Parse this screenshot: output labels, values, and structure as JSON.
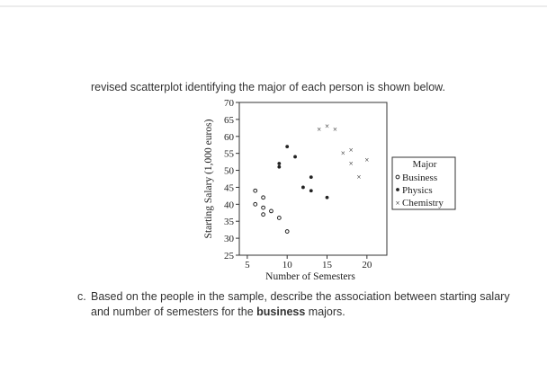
{
  "intro": {
    "text": "revised scatterplot identifying the major of each person is shown below."
  },
  "question": {
    "label": "c.",
    "text_before": "Based on the people in the sample, describe the association between starting salary and number of semesters for the ",
    "bold_word": "business",
    "text_after": " majors."
  },
  "chart_data": {
    "type": "scatter",
    "title": "",
    "xlabel": "Number of Semesters",
    "ylabel": "Starting Salary (1,000 euros)",
    "xlim": [
      4,
      22.5
    ],
    "ylim": [
      25,
      70
    ],
    "xticks": [
      5,
      10,
      15,
      20
    ],
    "yticks": [
      25,
      30,
      35,
      40,
      45,
      50,
      55,
      60,
      65,
      70
    ],
    "grid": false,
    "legend": {
      "title": "Major",
      "placement": "right",
      "entries": [
        "Business",
        "Physics",
        "Chemistry"
      ]
    },
    "series": [
      {
        "name": "Business",
        "marker": "open-circle",
        "x": [
          6,
          6,
          7,
          7,
          7,
          8,
          9,
          10
        ],
        "y": [
          44,
          40,
          42,
          39,
          37,
          38,
          36,
          32
        ]
      },
      {
        "name": "Physics",
        "marker": "dot",
        "x": [
          9,
          9,
          10,
          11,
          12,
          13,
          13,
          15
        ],
        "y": [
          51,
          52,
          57,
          54,
          45,
          48,
          44,
          42
        ]
      },
      {
        "name": "Chemistry",
        "marker": "x",
        "x": [
          14,
          15,
          16,
          17,
          18,
          18,
          19,
          20
        ],
        "y": [
          62,
          63,
          62,
          55,
          56,
          52,
          48,
          53
        ]
      }
    ]
  }
}
